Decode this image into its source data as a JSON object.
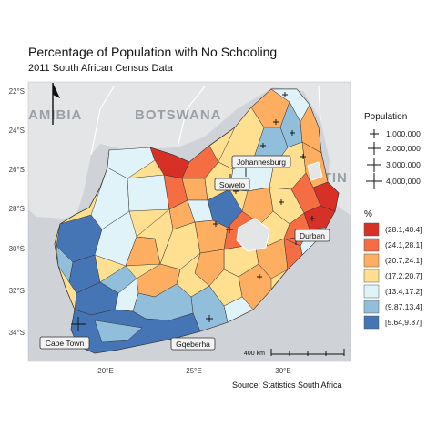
{
  "title": "Percentage of Population with No Schooling",
  "subtitle": "2011 South African Census Data",
  "source": "Source: Statistics South Africa",
  "axes": {
    "lat_ticks": [
      "22°S",
      "24°S",
      "26°S",
      "28°S",
      "30°S",
      "32°S",
      "34°S"
    ],
    "lon_ticks": [
      "20°E",
      "25°E",
      "30°E"
    ]
  },
  "basemap_labels": {
    "namibia": "AMIBIA",
    "botswana": "BOTSWANA",
    "mozambique": "ATIN"
  },
  "cities": [
    {
      "name": "Johannesburg",
      "pop": 4400000
    },
    {
      "name": "Soweto",
      "pop": 1300000
    },
    {
      "name": "Durban",
      "pop": 3400000
    },
    {
      "name": "Cape Town",
      "pop": 3700000
    },
    {
      "name": "Gqeberha",
      "pop": 1100000
    }
  ],
  "scale_bar": {
    "label": "400 km"
  },
  "legend_size": {
    "title": "Population",
    "items": [
      "1,000,000",
      "2,000,000",
      "3,000,000",
      "4,000,000"
    ]
  },
  "legend_color": {
    "title": "%",
    "items": [
      {
        "label": "(28.1,40.4]",
        "color": "#d73027"
      },
      {
        "label": "(24.1,28.1]",
        "color": "#f46d43"
      },
      {
        "label": "(20.7,24.1]",
        "color": "#fdae61"
      },
      {
        "label": "(17.2,20.7]",
        "color": "#fee090"
      },
      {
        "label": "(13.4,17.2]",
        "color": "#e0f3f8"
      },
      {
        "label": "(9.87,13.4]",
        "color": "#91bfdb"
      },
      {
        "label": "[5.64,9.87]",
        "color": "#4575b4"
      }
    ]
  },
  "colors": {
    "land": "#e4e5e6",
    "ocean": "#cfd3d7",
    "border": "#ffffff"
  }
}
